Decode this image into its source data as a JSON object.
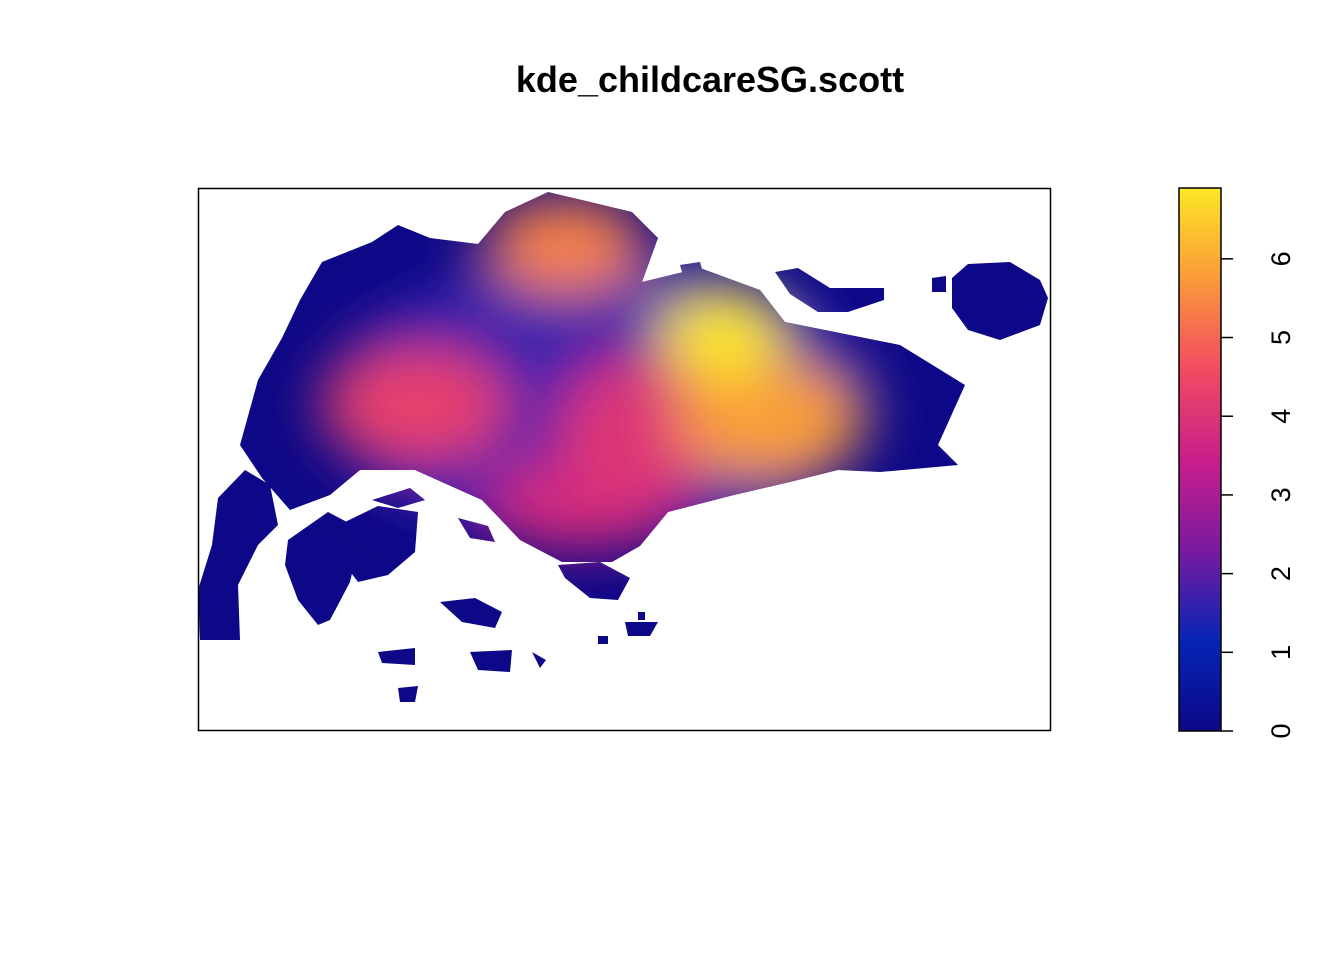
{
  "chart_data": {
    "type": "heatmap",
    "title": "kde_childcareSG.scott",
    "xlabel": "",
    "ylabel": "",
    "grid": false,
    "legend": "right",
    "value_range": [
      0,
      6.9
    ],
    "colorbar": {
      "ticks": [
        0,
        1,
        2,
        3,
        4,
        5,
        6
      ],
      "tick_labels": [
        "0",
        "1",
        "2",
        "3",
        "4",
        "5",
        "6"
      ],
      "palette": [
        "#0d0887",
        "#0625b5",
        "#7a1aa0",
        "#c81f8a",
        "#f24b62",
        "#fa9a3a",
        "#fde724"
      ]
    },
    "density_hotspots": [
      {
        "area": "north-central",
        "value": 5.4
      },
      {
        "area": "west-central",
        "value": 4.3
      },
      {
        "area": "north-east",
        "value": 6.9
      },
      {
        "area": "east-central",
        "value": 5.8
      },
      {
        "area": "central",
        "value": 4.0
      },
      {
        "area": "south",
        "value": 3.8
      },
      {
        "area": "central-east",
        "value": 2.6
      }
    ]
  }
}
